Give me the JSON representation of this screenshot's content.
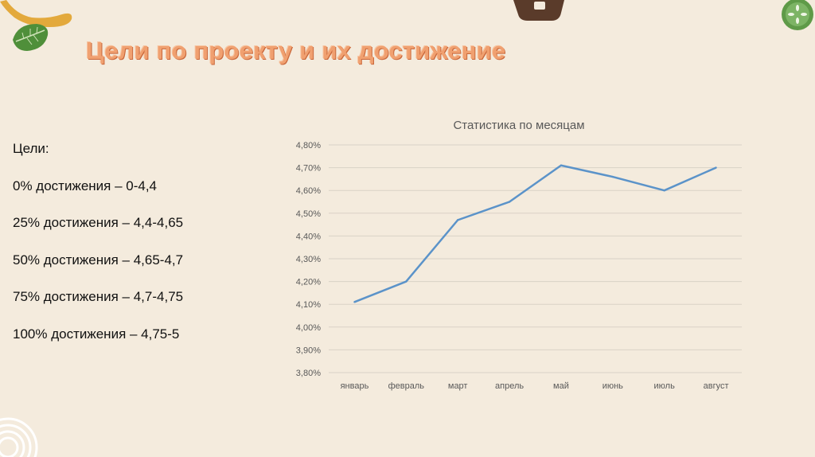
{
  "slide": {
    "title": "Цели по проекту и их достижение"
  },
  "goals": {
    "heading": "Цели:",
    "items": [
      "0% достижения – 0-4,4",
      "25% достижения – 4,4-4,65",
      "50% достижения – 4,65-4,7",
      "75% достижения – 4,7-4,75",
      "100% достижения – 4,75-5"
    ]
  },
  "colors": {
    "background": "#f4ebdd",
    "title": "#f0a070",
    "series_line": "#5b93c9",
    "gridline": "#d9d2c6",
    "axis_text": "#595959"
  },
  "icons": [
    "leaf-icon",
    "wooden-spoon-icon",
    "chocolate-icon",
    "cucumber-slice-icon",
    "onion-ring-icon"
  ],
  "chart_data": {
    "type": "line",
    "title": "Статистика по месяцам",
    "categories": [
      "январь",
      "февраль",
      "март",
      "апрель",
      "май",
      "июнь",
      "июль",
      "август"
    ],
    "series": [
      {
        "values": [
          4.11,
          4.2,
          4.47,
          4.55,
          4.71,
          4.66,
          4.6,
          4.7
        ]
      }
    ],
    "ylim": [
      3.8,
      4.8
    ],
    "yticks": [
      "3,80%",
      "3,90%",
      "4,00%",
      "4,10%",
      "4,20%",
      "4,30%",
      "4,40%",
      "4,50%",
      "4,60%",
      "4,70%",
      "4,80%"
    ],
    "xlabel": "",
    "ylabel": "",
    "grid": true,
    "legend": "none"
  }
}
